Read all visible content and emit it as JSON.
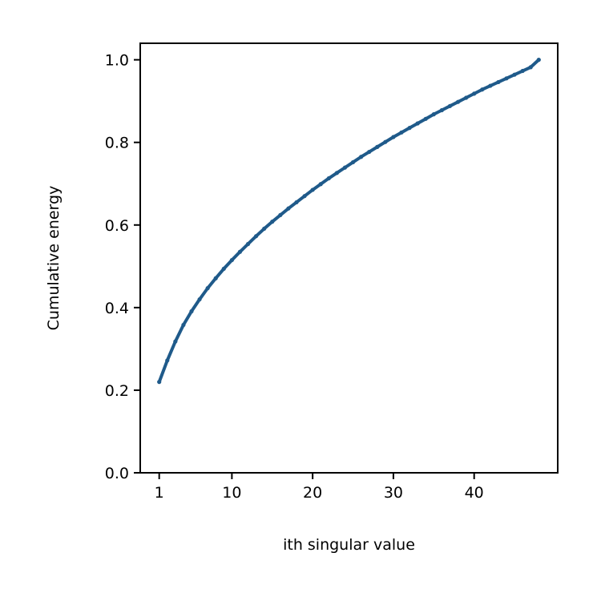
{
  "chart_data": {
    "type": "line",
    "title": "",
    "xlabel": "ith singular value",
    "ylabel": "Cumulative energy",
    "xlim": [
      -1.35,
      50.35
    ],
    "ylim": [
      0.0,
      1.04
    ],
    "xticks": [
      1,
      10,
      20,
      30,
      40
    ],
    "yticks": [
      0.0,
      0.2,
      0.4,
      0.6,
      0.8,
      1.0
    ],
    "ytick_labels": [
      "0.0",
      "0.2",
      "0.4",
      "0.6",
      "0.8",
      "1.0"
    ],
    "grid": false,
    "legend": "none",
    "series": [
      {
        "color": "#1f5a8a",
        "marker": "dot",
        "x": [
          1,
          2,
          3,
          4,
          5,
          6,
          7,
          8,
          9,
          10,
          11,
          12,
          13,
          14,
          15,
          16,
          17,
          18,
          19,
          20,
          21,
          22,
          23,
          24,
          25,
          26,
          27,
          28,
          29,
          30,
          31,
          32,
          33,
          34,
          35,
          36,
          37,
          38,
          39,
          40,
          41,
          42,
          43,
          44,
          45,
          46,
          47,
          48
        ],
        "y": [
          0.22,
          0.272,
          0.318,
          0.358,
          0.391,
          0.42,
          0.447,
          0.471,
          0.494,
          0.515,
          0.535,
          0.554,
          0.573,
          0.591,
          0.608,
          0.624,
          0.64,
          0.655,
          0.67,
          0.685,
          0.699,
          0.713,
          0.726,
          0.739,
          0.752,
          0.765,
          0.777,
          0.789,
          0.801,
          0.813,
          0.824,
          0.835,
          0.846,
          0.857,
          0.868,
          0.878,
          0.888,
          0.898,
          0.908,
          0.918,
          0.928,
          0.937,
          0.946,
          0.955,
          0.964,
          0.973,
          0.982,
          1.0
        ]
      }
    ]
  }
}
